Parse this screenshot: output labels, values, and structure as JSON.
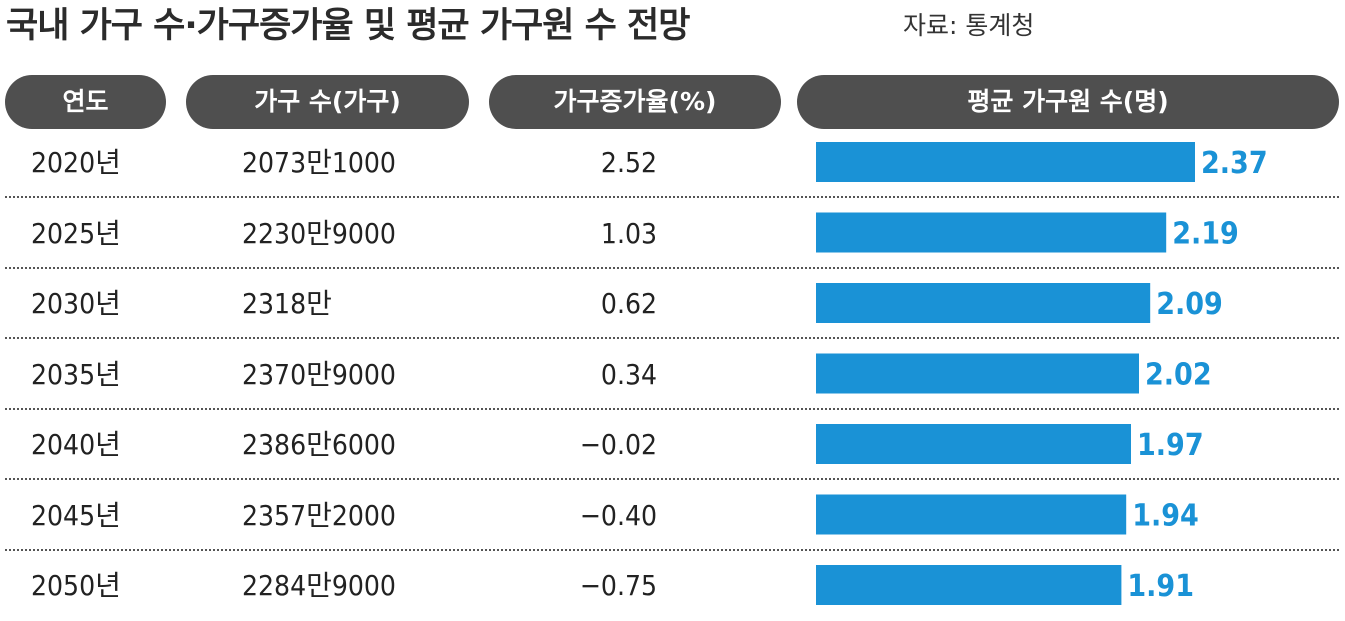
{
  "title": "국내 가구 수·가구증가율 및 평균 가구원 수 전망",
  "source": "자료: 통계청",
  "headers": {
    "year": "연도",
    "households": "가구 수(가구)",
    "growth_rate": "가구증가율(%)",
    "avg_size": "평균 가구원 수(명)"
  },
  "rows": [
    {
      "year": "2020년",
      "households": "2073만1000",
      "growth_rate": "2.52",
      "avg_size": "2.37"
    },
    {
      "year": "2025년",
      "households": "2230만9000",
      "growth_rate": "1.03",
      "avg_size": "2.19"
    },
    {
      "year": "2030년",
      "households": "2318만",
      "growth_rate": "0.62",
      "avg_size": "2.09"
    },
    {
      "year": "2035년",
      "households": "2370만9000",
      "growth_rate": "0.34",
      "avg_size": "2.02"
    },
    {
      "year": "2040년",
      "households": "2386만6000",
      "growth_rate": "−0.02",
      "avg_size": "1.97"
    },
    {
      "year": "2045년",
      "households": "2357만2000",
      "growth_rate": "−0.40",
      "avg_size": "1.94"
    },
    {
      "year": "2050년",
      "households": "2284만9000",
      "growth_rate": "−0.75",
      "avg_size": "1.91"
    }
  ],
  "chart_data": {
    "type": "bar",
    "orientation": "horizontal",
    "categories": [
      "2020년",
      "2025년",
      "2030년",
      "2035년",
      "2040년",
      "2045년",
      "2050년"
    ],
    "values": [
      2.37,
      2.19,
      2.09,
      2.02,
      1.97,
      1.94,
      1.91
    ],
    "value_labels": [
      "2.37",
      "2.19",
      "2.09",
      "2.02",
      "1.97",
      "1.94",
      "1.91"
    ],
    "title": "평균 가구원 수(명)",
    "xlabel": "",
    "ylabel": "",
    "grid": false,
    "legend": "none"
  },
  "colors": {
    "header_bg": "#4f4f4f",
    "header_text": "#ffffff",
    "bar": "#1a92d6",
    "bar_label": "#1a92d6",
    "text": "#222222"
  }
}
